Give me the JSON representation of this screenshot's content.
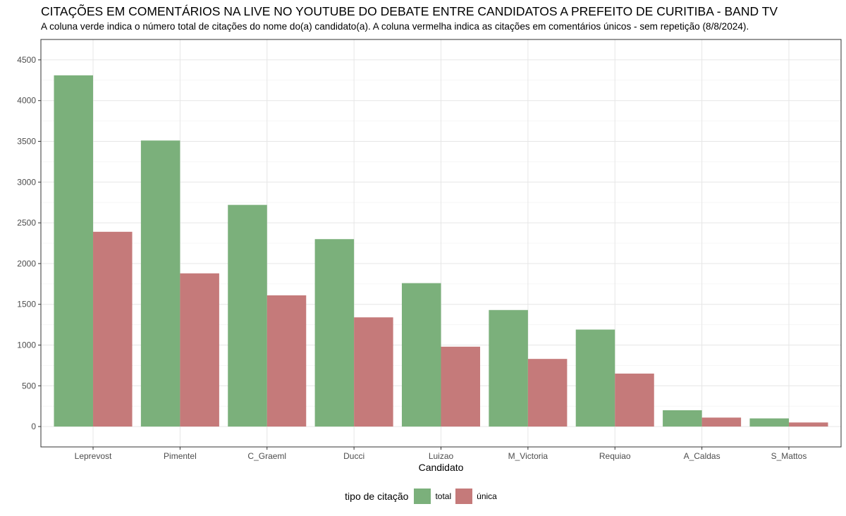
{
  "chart_data": {
    "type": "bar",
    "title": "CITAÇÕES EM COMENTÁRIOS NA LIVE NO YOUTUBE DO DEBATE ENTRE CANDIDATOS A PREFEITO DE CURITIBA - BAND TV",
    "subtitle": "A coluna verde indica o número total de citações do nome do(a) candidato(a). A coluna vermelha indica as citações em comentários únicos - sem repetição (8/8/2024).",
    "xlabel": "Candidato",
    "ylabel": "",
    "ylim": [
      -250,
      4750
    ],
    "yticks": [
      0,
      500,
      1000,
      1500,
      2000,
      2500,
      3000,
      3500,
      4000,
      4500
    ],
    "categories": [
      "Leprevost",
      "Pimentel",
      "C_Graeml",
      "Ducci",
      "Luizao",
      "M_Victoria",
      "Requiao",
      "A_Caldas",
      "S_Mattos"
    ],
    "series": [
      {
        "name": "total",
        "color": "#7bb07b",
        "values": [
          4310,
          3510,
          2720,
          2300,
          1760,
          1430,
          1190,
          200,
          100
        ]
      },
      {
        "name": "única",
        "color": "#c57a7a",
        "values": [
          2390,
          1880,
          1610,
          1340,
          980,
          830,
          650,
          110,
          50
        ]
      }
    ],
    "legend": {
      "title": "tipo de citação",
      "position": "bottom"
    },
    "grid": true
  }
}
